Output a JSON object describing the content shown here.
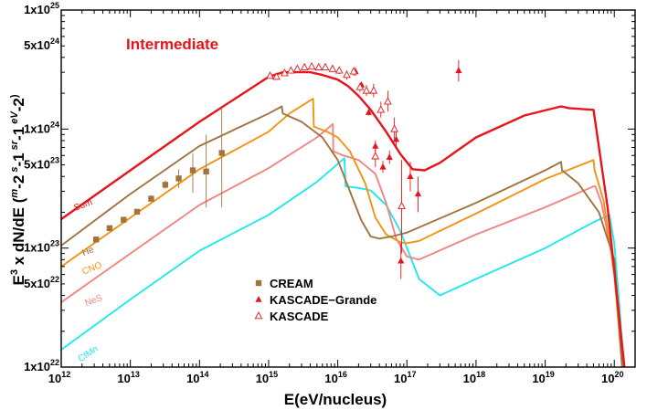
{
  "chart_data": {
    "type": "line",
    "title": "Intermediate",
    "title_color": "#e8141b",
    "xlabel": "E(eV/nucleus)",
    "ylabel_parts": [
      "E",
      "3",
      " x dN/dE (",
      "m",
      "-2",
      " s",
      "-1",
      " sr",
      "-1",
      " eV",
      "-2",
      ")"
    ],
    "x_scale": "log",
    "y_scale": "log",
    "xlim": [
      1000000000000.0,
      2e+20
    ],
    "ylim": [
      1e+22,
      1e+25
    ],
    "x_ticks": [
      {
        "value": 1000000000000.0,
        "base": "10",
        "exp": "12"
      },
      {
        "value": 10000000000000.0,
        "base": "10",
        "exp": "13"
      },
      {
        "value": 100000000000000.0,
        "base": "10",
        "exp": "14"
      },
      {
        "value": 1000000000000000.0,
        "base": "10",
        "exp": "15"
      },
      {
        "value": 1e+16,
        "base": "10",
        "exp": "16"
      },
      {
        "value": 1e+17,
        "base": "10",
        "exp": "17"
      },
      {
        "value": 1e+18,
        "base": "10",
        "exp": "18"
      },
      {
        "value": 1e+19,
        "base": "10",
        "exp": "19"
      },
      {
        "value": 1e+20,
        "base": "10",
        "exp": "20"
      }
    ],
    "y_ticks": [
      {
        "value": 1e+22,
        "base": "1x10",
        "exp": "22"
      },
      {
        "value": 5e+22,
        "base": "5x10",
        "exp": "22"
      },
      {
        "value": 1e+23,
        "base": "1x10",
        "exp": "23"
      },
      {
        "value": 5e+23,
        "base": "5x10",
        "exp": "23"
      },
      {
        "value": 1e+24,
        "base": "1x10",
        "exp": "24"
      },
      {
        "value": 5e+24,
        "base": "5x10",
        "exp": "24"
      },
      {
        "value": 1e+25,
        "base": "1x10",
        "exp": "25"
      }
    ],
    "curves": [
      {
        "name": "Sum",
        "color": "#e8141b",
        "width": 2.4,
        "x": [
          1000000000000.0,
          10000000000000.0,
          100000000000000.0,
          1000000000000000.0,
          1600000000000000.0,
          4000000000000000.0,
          6000000000000000.0,
          1e+16,
          1.4e+16,
          2e+16,
          3e+16,
          5e+16,
          8e+16,
          1.2e+17,
          1.8e+17,
          3e+17,
          1e+18,
          5e+18,
          1.7e+19,
          2.2e+19,
          5e+19,
          8e+19,
          1.4e+20
        ],
        "y": [
          1.75e+23,
          4.5e+23,
          1.15e+24,
          2.75e+24,
          3e+24,
          3e+24,
          2.85e+24,
          2.6e+24,
          2.3e+24,
          1.9e+24,
          1.45e+24,
          9.5e+23,
          6.2e+23,
          4.6e+23,
          4.5e+23,
          5.2e+23,
          8.5e+23,
          1.3e+24,
          1.55e+24,
          1.5e+24,
          1.45e+24,
          2.2e+23,
          1e+22
        ]
      },
      {
        "name": "He",
        "color": "#a0733f",
        "width": 1.9,
        "x": [
          1000000000000.0,
          10000000000000.0,
          100000000000000.0,
          1000000000000000.0,
          1550000000000000.0,
          1600000000000000.0,
          3000000000000000.0,
          6000000000000000.0,
          1e+16,
          1.5e+16,
          2.2e+16,
          3e+16,
          4e+16,
          6e+16,
          1e+17,
          1e+18,
          1e+19,
          1.7e+19,
          1.75e+19,
          3e+19,
          6e+19,
          1e+20,
          1.3e+20
        ],
        "y": [
          1.05e+23,
          2.85e+23,
          7.2e+23,
          1.35e+24,
          1.55e+24,
          1.35e+24,
          1.15e+24,
          8.5e+23,
          5.5e+23,
          3e+23,
          1.7e+23,
          1.25e+23,
          1.2e+23,
          1.25e+23,
          1.35e+23,
          2.4e+23,
          4.5e+23,
          5.3e+23,
          4.5e+23,
          3.5e+23,
          2e+23,
          8e+22,
          1e+22
        ]
      },
      {
        "name": "CNO",
        "color": "#f39313",
        "width": 1.9,
        "x": [
          1000000000000.0,
          10000000000000.0,
          100000000000000.0,
          1000000000000000.0,
          2000000000000000.0,
          4400000000000000.0,
          4500000000000000.0,
          7000000000000000.0,
          1e+16,
          1.5e+16,
          2.5e+16,
          3.5e+16,
          5e+16,
          8e+16,
          1e+17,
          1.5e+17,
          1e+18,
          1e+19,
          5e+19,
          5.2e+19,
          7e+19,
          1e+20,
          1.3e+20
        ],
        "y": [
          7e+22,
          1.8e+23,
          4.6e+23,
          9.5e+23,
          1.35e+24,
          1.8e+24,
          1.05e+24,
          9.5e+23,
          8.5e+23,
          6.5e+23,
          3.5e+23,
          1.8e+23,
          1.3e+23,
          1.12e+23,
          1.1e+23,
          1.15e+23,
          1.95e+23,
          3.8e+23,
          5.5e+23,
          4.5e+23,
          2.5e+23,
          6e+22,
          1e+22
        ]
      },
      {
        "name": "NeS",
        "color": "#f08583",
        "width": 1.9,
        "x": [
          1000000000000.0,
          10000000000000.0,
          100000000000000.0,
          1000000000000000.0,
          5000000000000000.0,
          8500000000000000.0,
          8600000000000000.0,
          1.2e+16,
          2e+16,
          3.5e+16,
          5e+16,
          7e+16,
          1e+17,
          1.5e+17,
          1e+18,
          1e+19,
          5e+19,
          5.3e+19,
          6.5e+19,
          1e+20,
          1.4e+20
        ],
        "y": [
          3.5e+22,
          9e+22,
          2.3e+23,
          4.7e+23,
          8.5e+23,
          1.1e+24,
          6.5e+23,
          6e+23,
          5.5e+23,
          4.2e+23,
          2.4e+23,
          1.2e+23,
          8.5e+22,
          8e+22,
          1.3e+23,
          2.2e+23,
          3.3e+23,
          3.3e+23,
          2.4e+23,
          7e+22,
          1e+22
        ]
      },
      {
        "name": "CIMn",
        "color": "#22e8ee",
        "width": 1.9,
        "x": [
          1000000000000.0,
          10000000000000.0,
          100000000000000.0,
          1000000000000000.0,
          5000000000000000.0,
          1.25e+16,
          1.3e+16,
          2e+16,
          3e+16,
          5e+16,
          8e+16,
          1.5e+17,
          3e+17,
          1e+18,
          1e+19,
          5e+19,
          8.5e+19,
          1e+20,
          1.2e+20,
          1.35e+20
        ],
        "y": [
          1.4e+22,
          3.7e+22,
          9.5e+22,
          1.9e+23,
          3.6e+23,
          5.7e+23,
          3.3e+23,
          3.2e+23,
          3.05e+23,
          2.3e+23,
          1.4e+23,
          5.5e+22,
          4e+22,
          5.5e+22,
          1e+23,
          1.65e+23,
          1.9e+23,
          1.1e+23,
          3e+22,
          1e+22
        ]
      }
    ],
    "curve_labels": [
      {
        "text": "Sum",
        "color": "#e8141b",
        "x": 1600000000000.0,
        "y": 2.05e+23,
        "rotate": -21
      },
      {
        "text": "He",
        "color": "#a0733f",
        "x": 2100000000000.0,
        "y": 8.6e+22,
        "rotate": -21
      },
      {
        "text": "CNO",
        "color": "#f39313",
        "x": 2100000000000.0,
        "y": 6e+22,
        "rotate": -21
      },
      {
        "text": "NeS",
        "color": "#f08583",
        "x": 2300000000000.0,
        "y": 3.25e+22,
        "rotate": -21
      },
      {
        "text": "CIMn",
        "color": "#22e8ee",
        "x": 1900000000000.0,
        "y": 1.1e+22,
        "rotate": -34
      }
    ],
    "series": [
      {
        "name": "CREAM",
        "marker": "square",
        "color": "#a0733f",
        "points": [
          {
            "x": 3200000000000.0,
            "y": 1.18e+23,
            "lo": 1.14e+23,
            "hi": 1.23e+23
          },
          {
            "x": 5000000000000.0,
            "y": 1.47e+23,
            "lo": 1.42e+23,
            "hi": 1.53e+23
          },
          {
            "x": 8000000000000.0,
            "y": 1.73e+23,
            "lo": 1.66e+23,
            "hi": 1.81e+23
          },
          {
            "x": 12500000000000.0,
            "y": 2.02e+23,
            "lo": 1.93e+23,
            "hi": 2.13e+23
          },
          {
            "x": 20000000000000.0,
            "y": 2.6e+23,
            "lo": 2.45e+23,
            "hi": 2.77e+23
          },
          {
            "x": 32000000000000.0,
            "y": 3.4e+23,
            "lo": 3.15e+23,
            "hi": 3.7e+23
          },
          {
            "x": 50000000000000.0,
            "y": 3.85e+23,
            "lo": 3.2e+23,
            "hi": 4.6e+23
          },
          {
            "x": 80000000000000.0,
            "y": 4.5e+23,
            "lo": 2.9e+23,
            "hi": 6.2e+23
          },
          {
            "x": 125000000000000.0,
            "y": 4.4e+23,
            "lo": 2.2e+23,
            "hi": 9e+23
          },
          {
            "x": 210000000000000.0,
            "y": 6.3e+23,
            "lo": 2.2e+23,
            "hi": 1.5e+24
          }
        ]
      },
      {
        "name": "KASCADE-Grande",
        "marker": "triangle",
        "color": "#e8141b",
        "points": [
          {
            "x": 1.8e+16,
            "y": 3.05e+24,
            "lo": 2.8e+24,
            "hi": 3.3e+24
          },
          {
            "x": 2.2e+16,
            "y": 2.35e+24,
            "lo": 2.2e+24,
            "hi": 2.5e+24
          },
          {
            "x": 2.8e+16,
            "y": 1.38e+24,
            "lo": 1.3e+24,
            "hi": 1.47e+24
          },
          {
            "x": 3.5e+16,
            "y": 7.2e+23,
            "lo": 6.5e+23,
            "hi": 8e+23
          },
          {
            "x": 4.5e+16,
            "y": 4.8e+23,
            "lo": 4.3e+23,
            "hi": 5.4e+23
          },
          {
            "x": 5.6e+16,
            "y": 5.8e+23,
            "lo": 5.1e+23,
            "hi": 6.6e+23
          },
          {
            "x": 7e+16,
            "y": 8.2e+23,
            "lo": 6.8e+23,
            "hi": 1e+24
          },
          {
            "x": 8.2e+16,
            "y": 7.8e+22,
            "lo": 5.5e+22,
            "hi": 1.1e+23
          },
          {
            "x": 1.12e+17,
            "y": 4e+23,
            "lo": 3e+23,
            "hi": 5.3e+23
          },
          {
            "x": 1.45e+17,
            "y": 2.85e+23,
            "lo": 2e+23,
            "hi": 4e+23
          },
          {
            "x": 5.6e+17,
            "y": 3.1e+24,
            "lo": 2.5e+24,
            "hi": 3.8e+24
          }
        ]
      },
      {
        "name": "KASCADE",
        "marker": "open-triangle",
        "color": "#e8141b",
        "points": [
          {
            "x": 1050000000000000.0,
            "y": 2.8e+24,
            "lo": 2.7e+24,
            "hi": 2.9e+24
          },
          {
            "x": 1300000000000000.0,
            "y": 2.75e+24,
            "lo": 2.65e+24,
            "hi": 2.85e+24
          },
          {
            "x": 1700000000000000.0,
            "y": 2.95e+24,
            "lo": 2.85e+24,
            "hi": 3.05e+24
          },
          {
            "x": 2100000000000000.0,
            "y": 3.1e+24,
            "lo": 3e+24,
            "hi": 3.2e+24
          },
          {
            "x": 2600000000000000.0,
            "y": 3.2e+24,
            "lo": 3.1e+24,
            "hi": 3.3e+24
          },
          {
            "x": 3300000000000000.0,
            "y": 3.3e+24,
            "lo": 3.15e+24,
            "hi": 3.45e+24
          },
          {
            "x": 4200000000000000.0,
            "y": 3.35e+24,
            "lo": 3.2e+24,
            "hi": 3.5e+24
          },
          {
            "x": 5300000000000000.0,
            "y": 3.3e+24,
            "lo": 3.15e+24,
            "hi": 3.45e+24
          },
          {
            "x": 6600000000000000.0,
            "y": 3.3e+24,
            "lo": 3.15e+24,
            "hi": 3.5e+24
          },
          {
            "x": 8400000000000000.0,
            "y": 3.2e+24,
            "lo": 3e+24,
            "hi": 3.4e+24
          },
          {
            "x": 1.05e+16,
            "y": 3.1e+24,
            "lo": 2.9e+24,
            "hi": 3.3e+24
          },
          {
            "x": 1.35e+16,
            "y": 2.85e+24,
            "lo": 2.6e+24,
            "hi": 3.1e+24
          },
          {
            "x": 1.7e+16,
            "y": 3.05e+24,
            "lo": 2.8e+24,
            "hi": 3.3e+24
          },
          {
            "x": 2.1e+16,
            "y": 2.25e+24,
            "lo": 2.05e+24,
            "hi": 2.45e+24
          },
          {
            "x": 2.6e+16,
            "y": 2.1e+24,
            "lo": 1.9e+24,
            "hi": 2.35e+24
          },
          {
            "x": 3.3e+16,
            "y": 2.1e+24,
            "lo": 1.85e+24,
            "hi": 2.4e+24
          },
          {
            "x": 4.2e+16,
            "y": 1.45e+24,
            "lo": 1.25e+24,
            "hi": 1.7e+24
          },
          {
            "x": 5.3e+16,
            "y": 1.7e+24,
            "lo": 1.4e+24,
            "hi": 2.1e+24
          },
          {
            "x": 6.6e+16,
            "y": 1e+24,
            "lo": 8e+23,
            "hi": 1.25e+24
          },
          {
            "x": 8.4e+16,
            "y": 2.25e+23,
            "lo": 9e+22,
            "hi": 5.5e+23
          },
          {
            "x": 3.5e+16,
            "y": 5.9e+23,
            "lo": 4.8e+23,
            "hi": 7.2e+23
          }
        ]
      }
    ],
    "legend": {
      "position": "bottom-center",
      "entries": [
        {
          "label": "CREAM",
          "marker": "square",
          "color": "#a0733f"
        },
        {
          "label": "KASCADE−Grande",
          "marker": "triangle",
          "color": "#e8141b"
        },
        {
          "label": "KASCADE",
          "marker": "open-triangle",
          "color": "#e8141b"
        }
      ]
    },
    "grid": false
  }
}
